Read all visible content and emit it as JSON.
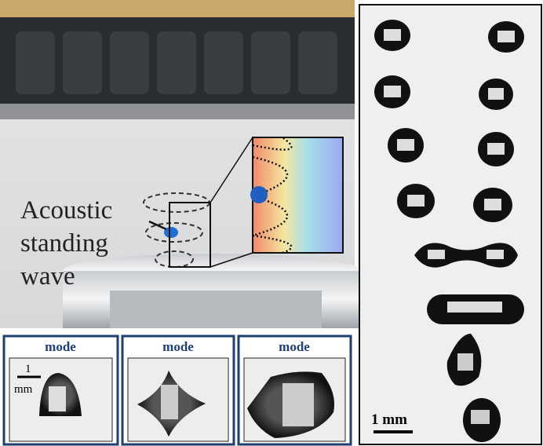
{
  "figure": {
    "label_lines": [
      "Acoustic",
      "standing",
      "wave"
    ],
    "mode_panels": [
      {
        "title": "mode",
        "scale_number": "1",
        "scale_unit": "mm"
      },
      {
        "title": "mode"
      },
      {
        "title": "mode"
      }
    ],
    "scale_bar": "1 mm"
  }
}
